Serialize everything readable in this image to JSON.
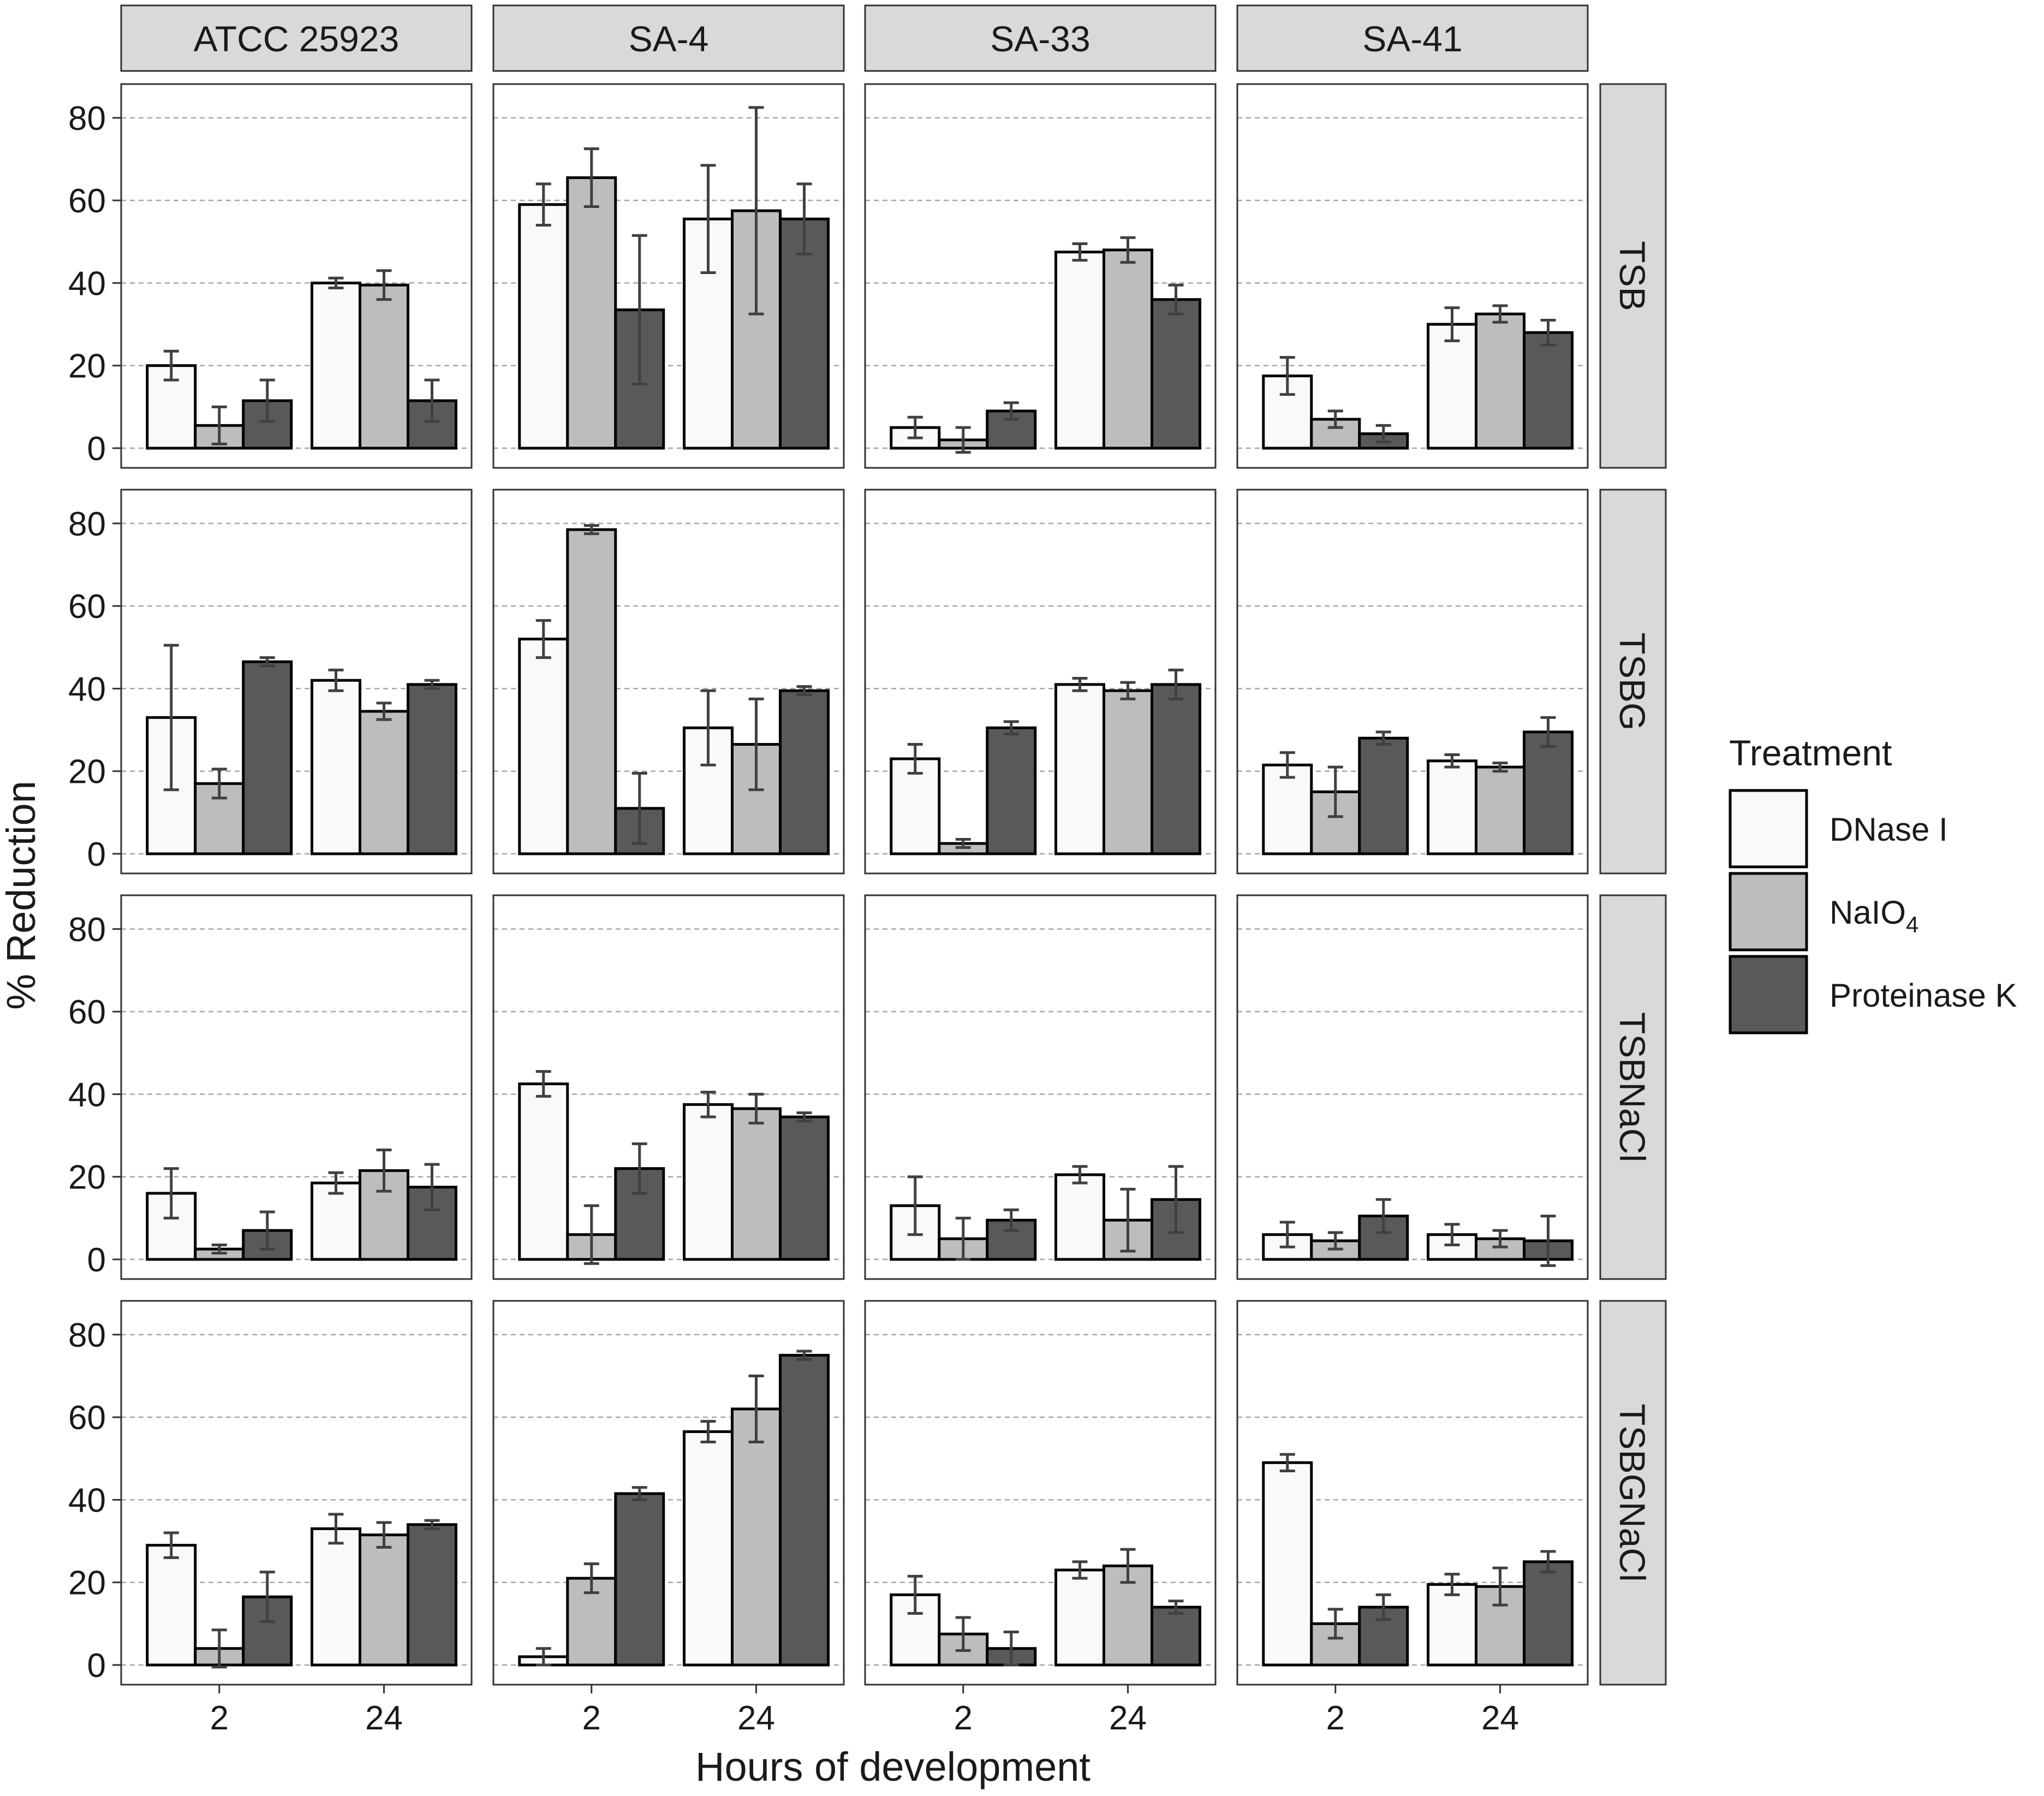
{
  "chart_data": {
    "type": "bar",
    "layout": "faceted grid, 4 columns by strain, 4 rows by medium",
    "ylabel": "% Reduction",
    "xlabel": "Hours of development",
    "ylim": [
      0,
      85
    ],
    "yticks": [
      0,
      20,
      40,
      60,
      80
    ],
    "categories": [
      "2",
      "24"
    ],
    "columns": [
      "ATCC 25923",
      "SA-4",
      "SA-33",
      "SA-41"
    ],
    "rows": [
      "TSB",
      "TSBG",
      "TSBNaCl",
      "TSBGNaCl"
    ],
    "legend": {
      "title": "Treatment",
      "position": "right",
      "entries": [
        {
          "name": "DNase I",
          "sub": "",
          "fill": "#f9f9f9"
        },
        {
          "name": "NaIO",
          "sub": "4",
          "fill": "#bdbdbd"
        },
        {
          "name": "Proteinase K",
          "sub": "",
          "fill": "#595959"
        }
      ]
    },
    "series_names": [
      "DNase I",
      "NaIO4",
      "Proteinase K"
    ],
    "panels": [
      {
        "row": "TSB",
        "column": "ATCC 25923",
        "means": [
          [
            20,
            5.5,
            11.5
          ],
          [
            40,
            39.5,
            11.5
          ]
        ],
        "errors": [
          [
            3.5,
            4.5,
            5
          ],
          [
            1.2,
            3.5,
            5
          ]
        ]
      },
      {
        "row": "TSB",
        "column": "SA-4",
        "means": [
          [
            59,
            65.5,
            33.5
          ],
          [
            55.5,
            57.5,
            55.5
          ]
        ],
        "errors": [
          [
            5,
            7,
            18
          ],
          [
            13,
            25,
            8.5
          ]
        ]
      },
      {
        "row": "TSB",
        "column": "SA-33",
        "means": [
          [
            5,
            2,
            9
          ],
          [
            47.5,
            48,
            36
          ]
        ],
        "errors": [
          [
            2.5,
            3,
            2
          ],
          [
            2,
            3,
            3.5
          ]
        ]
      },
      {
        "row": "TSB",
        "column": "SA-41",
        "means": [
          [
            17.5,
            7,
            3.5
          ],
          [
            30,
            32.5,
            28
          ]
        ],
        "errors": [
          [
            4.5,
            2,
            2
          ],
          [
            4,
            2,
            3
          ]
        ]
      },
      {
        "row": "TSBG",
        "column": "ATCC 25923",
        "means": [
          [
            33,
            17,
            46.5
          ],
          [
            42,
            34.5,
            41
          ]
        ],
        "errors": [
          [
            17.5,
            3.5,
            1
          ],
          [
            2.5,
            2,
            1
          ]
        ]
      },
      {
        "row": "TSBG",
        "column": "SA-4",
        "means": [
          [
            52,
            78.5,
            11
          ],
          [
            30.5,
            26.5,
            39.5
          ]
        ],
        "errors": [
          [
            4.5,
            1,
            8.5
          ],
          [
            9,
            11,
            1
          ]
        ]
      },
      {
        "row": "TSBG",
        "column": "SA-33",
        "means": [
          [
            23,
            2.5,
            30.5
          ],
          [
            41,
            39.5,
            41
          ]
        ],
        "errors": [
          [
            3.5,
            1,
            1.5
          ],
          [
            1.5,
            2,
            3.5
          ]
        ]
      },
      {
        "row": "TSBG",
        "column": "SA-41",
        "means": [
          [
            21.5,
            15,
            28
          ],
          [
            22.5,
            21,
            29.5
          ]
        ],
        "errors": [
          [
            3,
            6,
            1.5
          ],
          [
            1.5,
            1,
            3.5
          ]
        ]
      },
      {
        "row": "TSBNaCl",
        "column": "ATCC 25923",
        "means": [
          [
            16,
            2.5,
            7
          ],
          [
            18.5,
            21.5,
            17.5
          ]
        ],
        "errors": [
          [
            6,
            1,
            4.5
          ],
          [
            2.5,
            5,
            5.5
          ]
        ]
      },
      {
        "row": "TSBNaCl",
        "column": "SA-4",
        "means": [
          [
            42.5,
            6,
            22
          ],
          [
            37.5,
            36.5,
            34.5
          ]
        ],
        "errors": [
          [
            3,
            7,
            6
          ],
          [
            3,
            3.5,
            1
          ]
        ]
      },
      {
        "row": "TSBNaCl",
        "column": "SA-33",
        "means": [
          [
            13,
            5,
            9.5
          ],
          [
            20.5,
            9.5,
            14.5
          ]
        ],
        "errors": [
          [
            7,
            5,
            2.5
          ],
          [
            2,
            7.5,
            8
          ]
        ]
      },
      {
        "row": "TSBNaCl",
        "column": "SA-41",
        "means": [
          [
            6,
            4.5,
            10.5
          ],
          [
            6,
            5,
            4.5
          ]
        ],
        "errors": [
          [
            3,
            2,
            4
          ],
          [
            2.5,
            2,
            6
          ]
        ]
      },
      {
        "row": "TSBGNaCl",
        "column": "ATCC 25923",
        "means": [
          [
            29,
            4,
            16.5
          ],
          [
            33,
            31.5,
            34
          ]
        ],
        "errors": [
          [
            3,
            4.5,
            6
          ],
          [
            3.5,
            3,
            1
          ]
        ]
      },
      {
        "row": "TSBGNaCl",
        "column": "SA-4",
        "means": [
          [
            2,
            21,
            41.5
          ],
          [
            56.5,
            62,
            75
          ]
        ],
        "errors": [
          [
            2,
            3.5,
            1.5
          ],
          [
            2.5,
            8,
            1
          ]
        ]
      },
      {
        "row": "TSBGNaCl",
        "column": "SA-33",
        "means": [
          [
            17,
            7.5,
            4
          ],
          [
            23,
            24,
            14
          ]
        ],
        "errors": [
          [
            4.5,
            4,
            4
          ],
          [
            2,
            4,
            1.5
          ]
        ]
      },
      {
        "row": "TSBGNaCl",
        "column": "SA-41",
        "means": [
          [
            49,
            10,
            14
          ],
          [
            19.5,
            19,
            25
          ]
        ],
        "errors": [
          [
            2,
            3.5,
            3
          ],
          [
            2.5,
            4.5,
            2.5
          ]
        ]
      }
    ]
  },
  "colors": {
    "strip_fill": "#d9d9d9",
    "strip_border": "#333333",
    "panel_border": "#333333",
    "grid": "#a6a6a6",
    "error_bar": "#404040",
    "bar_border": "#000000",
    "text": "#1a1a1a"
  }
}
